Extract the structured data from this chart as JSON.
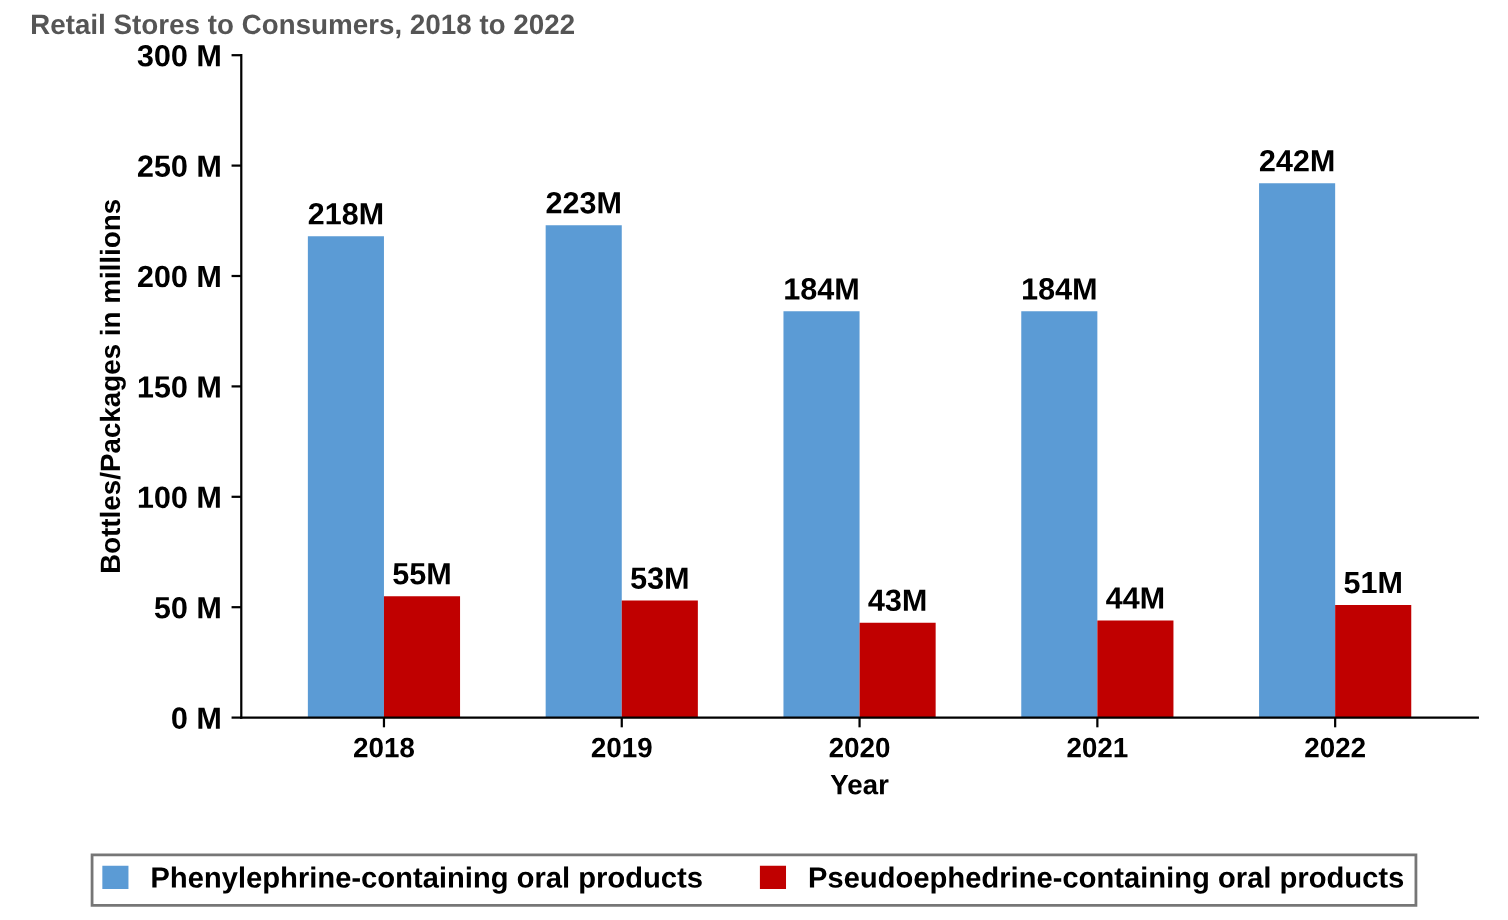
{
  "chart_data": {
    "type": "bar",
    "title": "Retail Stores to Consumers, 2018 to 2022",
    "xlabel": "Year",
    "ylabel": "Bottles/Packages in millions",
    "categories": [
      "2018",
      "2019",
      "2020",
      "2021",
      "2022"
    ],
    "series": [
      {
        "name": "Phenylephrine-containing oral products",
        "color": "#5b9bd5",
        "values": [
          218,
          223,
          184,
          184,
          242
        ],
        "value_labels": [
          "218M",
          "223M",
          "184M",
          "184M",
          "242M"
        ]
      },
      {
        "name": "Pseudoephedrine-containing oral products",
        "color": "#c00000",
        "values": [
          55,
          53,
          43,
          44,
          51
        ],
        "value_labels": [
          "55M",
          "53M",
          "43M",
          "44M",
          "51M"
        ]
      }
    ],
    "ylim": [
      0,
      300
    ],
    "yticks": [
      {
        "value": 0,
        "label": "0 M"
      },
      {
        "value": 50,
        "label": "50 M"
      },
      {
        "value": 100,
        "label": "100 M"
      },
      {
        "value": 150,
        "label": "150 M"
      },
      {
        "value": 200,
        "label": "200 M"
      },
      {
        "value": 250,
        "label": "250 M"
      },
      {
        "value": 300,
        "label": "300 M"
      }
    ],
    "grid": false,
    "legend": "bottom"
  }
}
